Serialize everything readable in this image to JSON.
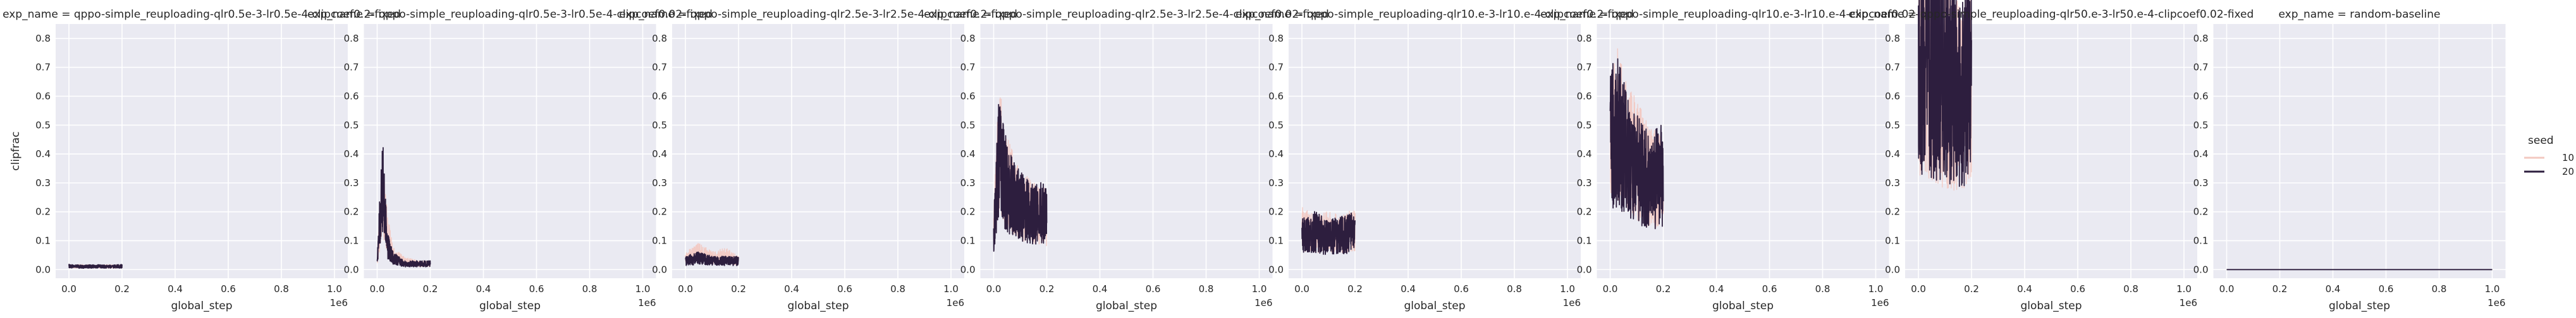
{
  "chart_data": {
    "type": "line",
    "layout": "facet-grid",
    "y_axis": {
      "label": "clipfrac",
      "ylim": [
        -0.03,
        0.85
      ],
      "ticks": [
        0.0,
        0.1,
        0.2,
        0.3,
        0.4,
        0.5,
        0.6,
        0.7,
        0.8
      ],
      "tick_labels": [
        "0.0",
        "0.1",
        "0.2",
        "0.3",
        "0.4",
        "0.5",
        "0.6",
        "0.7",
        "0.8"
      ]
    },
    "x_axis": {
      "label": "global_step",
      "xlim": [
        -0.05,
        1.05
      ],
      "ticks": [
        0.0,
        0.2,
        0.4,
        0.6,
        0.8,
        1.0
      ],
      "tick_labels": [
        "0.0",
        "0.2",
        "0.4",
        "0.6",
        "0.8",
        "1.0"
      ],
      "offset_text": "1e6"
    },
    "grid": true,
    "legend": {
      "title": "seed",
      "placement": "right",
      "entries": [
        {
          "label": "10",
          "color": "#f3c8c0"
        },
        {
          "label": "20",
          "color": "#2d1e3e"
        }
      ]
    },
    "panels": [
      {
        "title": "exp_name = qppo-simple_reuploading-qlr0.5e-3-lr0.5e-4-clipcoef0.2-fixed",
        "x_range": [
          0.0,
          0.2
        ],
        "series": [
          {
            "name": "10",
            "x": [
              0.0,
              0.05,
              0.1,
              0.15,
              0.2
            ],
            "y": [
              0.01,
              0.012,
              0.01,
              0.011,
              0.01
            ]
          },
          {
            "name": "20",
            "x": [
              0.0,
              0.05,
              0.1,
              0.15,
              0.2
            ],
            "y": [
              0.012,
              0.01,
              0.011,
              0.01,
              0.012
            ]
          }
        ]
      },
      {
        "title": "exp_name = qppo-simple_reuploading-qlr0.5e-3-lr0.5e-4-clipcoef0.02-fixed",
        "x_range": [
          0.0,
          0.2
        ],
        "series": [
          {
            "name": "10",
            "x": [
              0.0,
              0.02,
              0.04,
              0.06,
              0.1,
              0.15,
              0.2
            ],
            "y": [
              0.03,
              0.26,
              0.12,
              0.05,
              0.03,
              0.02,
              0.02
            ]
          },
          {
            "name": "20",
            "x": [
              0.0,
              0.02,
              0.04,
              0.06,
              0.1,
              0.15,
              0.2
            ],
            "y": [
              0.03,
              0.3,
              0.08,
              0.04,
              0.02,
              0.02,
              0.02
            ]
          }
        ]
      },
      {
        "title": "exp_name = qppo-simple_reuploading-qlr2.5e-3-lr2.5e-4-clipcoef0.2-fixed",
        "x_range": [
          0.0,
          0.2
        ],
        "series": [
          {
            "name": "10",
            "x": [
              0.0,
              0.05,
              0.1,
              0.15,
              0.2
            ],
            "y": [
              0.04,
              0.06,
              0.04,
              0.05,
              0.03
            ]
          },
          {
            "name": "20",
            "x": [
              0.0,
              0.05,
              0.1,
              0.15,
              0.2
            ],
            "y": [
              0.03,
              0.04,
              0.03,
              0.03,
              0.03
            ]
          }
        ]
      },
      {
        "title": "exp_name = qppo-simple_reuploading-qlr2.5e-3-lr2.5e-4-clipcoef0.02-fixed",
        "x_range": [
          0.0,
          0.2
        ],
        "series": [
          {
            "name": "10",
            "x": [
              0.0,
              0.02,
              0.05,
              0.1,
              0.15,
              0.2
            ],
            "y": [
              0.15,
              0.42,
              0.3,
              0.22,
              0.2,
              0.18
            ]
          },
          {
            "name": "20",
            "x": [
              0.0,
              0.02,
              0.05,
              0.1,
              0.15,
              0.2
            ],
            "y": [
              0.12,
              0.4,
              0.28,
              0.22,
              0.19,
              0.2
            ]
          }
        ]
      },
      {
        "title": "exp_name = qppo-simple_reuploading-qlr10.e-3-lr10.e-4-clipcoef0.2-fixed",
        "x_range": [
          0.0,
          0.2
        ],
        "series": [
          {
            "name": "10",
            "x": [
              0.0,
              0.05,
              0.1,
              0.15,
              0.2
            ],
            "y": [
              0.14,
              0.12,
              0.13,
              0.12,
              0.14
            ]
          },
          {
            "name": "20",
            "x": [
              0.0,
              0.05,
              0.1,
              0.15,
              0.2
            ],
            "y": [
              0.12,
              0.13,
              0.11,
              0.12,
              0.13
            ]
          }
        ]
      },
      {
        "title": "exp_name = qppo-simple_reuploading-qlr10.e-3-lr10.e-4-clipcoef0.02-fixed",
        "x_range": [
          0.0,
          0.2
        ],
        "series": [
          {
            "name": "10",
            "x": [
              0.0,
              0.03,
              0.06,
              0.1,
              0.15,
              0.2
            ],
            "y": [
              0.45,
              0.5,
              0.42,
              0.38,
              0.32,
              0.3
            ]
          },
          {
            "name": "20",
            "x": [
              0.0,
              0.03,
              0.06,
              0.1,
              0.15,
              0.2
            ],
            "y": [
              0.45,
              0.48,
              0.4,
              0.35,
              0.3,
              0.33
            ]
          }
        ]
      },
      {
        "title": "exp_name = qppo-simple_reuploading-qlr50.e-3-lr50.e-4-clipcoef0.02-fixed",
        "x_range": [
          0.0,
          0.2
        ],
        "series": [
          {
            "name": "10",
            "x": [
              0.0,
              0.05,
              0.1,
              0.15,
              0.2
            ],
            "y": [
              0.72,
              0.68,
              0.62,
              0.6,
              0.63
            ]
          },
          {
            "name": "20",
            "x": [
              0.0,
              0.05,
              0.1,
              0.15,
              0.2
            ],
            "y": [
              0.74,
              0.7,
              0.66,
              0.62,
              0.65
            ]
          }
        ]
      },
      {
        "title": "exp_name = random-baseline",
        "x_range": [
          0.0,
          1.0
        ],
        "series": [
          {
            "name": "10",
            "x": [
              0.0,
              1.0
            ],
            "y": [
              0.0,
              0.0
            ]
          },
          {
            "name": "20",
            "x": [
              0.0,
              1.0
            ],
            "y": [
              0.0,
              0.0
            ]
          }
        ]
      }
    ]
  }
}
